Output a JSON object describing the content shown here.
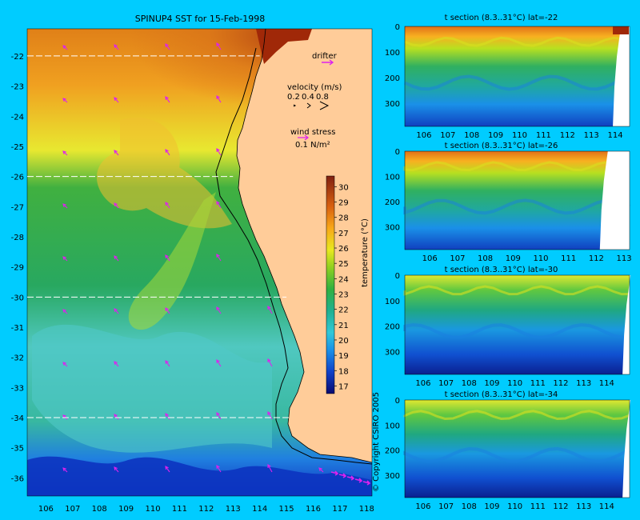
{
  "colors": {
    "background": "#00ccff",
    "land": "#ffcc99",
    "vector": "#dd22ee",
    "lat_line": "#ffffff"
  },
  "map": {
    "title": "SPINUP4 SST for 15-Feb-1998",
    "x_ticks": [
      106,
      107,
      108,
      109,
      110,
      111,
      112,
      113,
      114,
      115,
      116,
      117,
      118
    ],
    "y_ticks": [
      -22,
      -23,
      -24,
      -25,
      -26,
      -27,
      -28,
      -29,
      -30,
      -31,
      -32,
      -33,
      -34,
      -35,
      -36
    ],
    "xlim": [
      105.3,
      118.2
    ],
    "ylim": [
      -36.6,
      -21.1
    ],
    "section_lats": [
      -22,
      -26,
      -30,
      -34
    ],
    "legend": {
      "drifter_label": "drifter",
      "velocity_label": "velocity (m/s)",
      "velocity_scale": [
        "0.2",
        "0.4",
        "0.8"
      ],
      "wind_label": "wind stress",
      "wind_scale": "0.1 N/m²"
    },
    "colorbar": {
      "label": "temperature (°C)",
      "ticks": [
        17,
        18,
        19,
        20,
        21,
        22,
        23,
        24,
        25,
        26,
        27,
        28,
        29,
        30
      ],
      "range": [
        16.5,
        30.7
      ]
    },
    "copyright": "© Copyright CSIRO 2005"
  },
  "chart_data": [
    {
      "type": "heatmap",
      "title": "SPINUP4 SST for 15-Feb-1998",
      "xlabel": "",
      "ylabel": "",
      "colorbar_label": "temperature (°C)",
      "x_range": [
        105.3,
        118.2
      ],
      "y_range": [
        -36.6,
        -21.1
      ],
      "z_range": [
        16.5,
        30.7
      ],
      "description_values": {
        "north_sst": 29,
        "mid_sst": 23,
        "south_sst": 18
      }
    },
    {
      "type": "heatmap",
      "title": "t section (8.3..31°C) lat=-22",
      "x_ticks": [
        106,
        107,
        108,
        109,
        110,
        111,
        112,
        113,
        114
      ],
      "y_ticks": [
        0,
        100,
        200,
        300
      ],
      "xlim": [
        105.2,
        114.6
      ],
      "ylim": [
        0,
        390
      ],
      "coast_lon": 114.1
    },
    {
      "type": "heatmap",
      "title": "t section (8.3..31°C) lat=-26",
      "x_ticks": [
        106,
        107,
        108,
        109,
        110,
        111,
        112,
        113
      ],
      "y_ticks": [
        0,
        100,
        200,
        300
      ],
      "xlim": [
        105.1,
        113.2
      ],
      "ylim": [
        0,
        390
      ],
      "coast_lon": 112.3
    },
    {
      "type": "heatmap",
      "title": "t section (8.3..31°C) lat=-30",
      "x_ticks": [
        106,
        107,
        108,
        109,
        110,
        111,
        112,
        113,
        114
      ],
      "y_ticks": [
        0,
        100,
        200,
        300
      ],
      "xlim": [
        105.2,
        115.0
      ],
      "ylim": [
        0,
        390
      ],
      "coast_lon": 114.9
    },
    {
      "type": "heatmap",
      "title": "t section (8.3..31°C) lat=-34",
      "x_ticks": [
        106,
        107,
        108,
        109,
        110,
        111,
        112,
        113,
        114
      ],
      "y_ticks": [
        0,
        100,
        200,
        300
      ],
      "xlim": [
        105.2,
        115.0
      ],
      "ylim": [
        0,
        390
      ],
      "coast_lon": 114.9
    }
  ]
}
